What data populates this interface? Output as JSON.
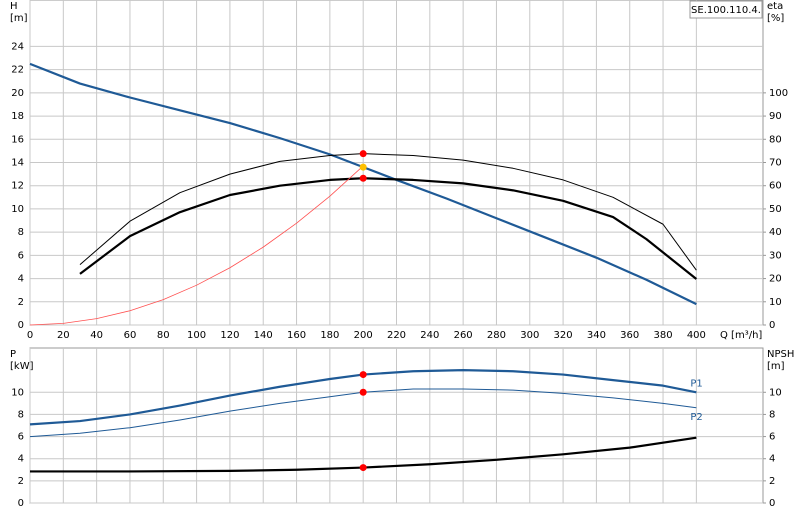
{
  "chart_data": [
    {
      "type": "line",
      "ylabel": [
        "H",
        "[m]"
      ],
      "y2label": [
        "eta",
        "[%]"
      ],
      "xlabel": "Q [m³/h]",
      "annotation": "SE.100.110.4.",
      "xlim": [
        0,
        440
      ],
      "xticks": [
        0,
        20,
        40,
        60,
        80,
        100,
        120,
        140,
        160,
        180,
        200,
        220,
        240,
        260,
        280,
        300,
        320,
        340,
        360,
        380,
        400
      ],
      "ylim": [
        0,
        28
      ],
      "yticks": [
        0,
        2,
        4,
        6,
        8,
        10,
        12,
        14,
        16,
        18,
        20,
        22,
        24
      ],
      "y2lim": [
        0,
        140
      ],
      "y2ticks": [
        0,
        10,
        20,
        30,
        40,
        50,
        60,
        70,
        80,
        90,
        100
      ],
      "grid": true,
      "xticklabels": true,
      "series": [
        {
          "color": "#1f5a96",
          "width": 2.2,
          "x": [
            0,
            30,
            60,
            90,
            120,
            150,
            180,
            200,
            220,
            250,
            280,
            310,
            340,
            370,
            400
          ],
          "values": [
            22.5,
            20.8,
            19.6,
            18.5,
            17.4,
            16.1,
            14.7,
            13.6,
            12.5,
            10.9,
            9.2,
            7.5,
            5.8,
            3.9,
            1.8
          ]
        },
        {
          "color": "#000000",
          "width": 1,
          "axis": "y2",
          "x": [
            30,
            60,
            90,
            120,
            150,
            180,
            200,
            230,
            260,
            290,
            320,
            350,
            380,
            400
          ],
          "values": [
            26,
            44.7,
            57,
            65,
            70.5,
            73,
            73.8,
            73,
            71,
            67.5,
            62.5,
            55,
            43.4,
            23.6
          ]
        },
        {
          "color": "#000000",
          "width": 2.2,
          "axis": "y2",
          "x": [
            30,
            60,
            90,
            120,
            150,
            180,
            200,
            230,
            260,
            290,
            320,
            350,
            370,
            400
          ],
          "values": [
            22,
            38.3,
            48.6,
            56,
            60,
            62.5,
            63.2,
            62.5,
            61,
            58,
            53.5,
            46.5,
            37,
            19.8
          ]
        },
        {
          "color": "#ff5050",
          "width": 0.8,
          "x": [
            0,
            20,
            40,
            60,
            80,
            100,
            120,
            140,
            160,
            180,
            200
          ],
          "values": [
            0,
            0.14,
            0.55,
            1.23,
            2.19,
            3.43,
            4.93,
            6.71,
            8.77,
            11.1,
            13.7
          ]
        },
        {
          "color": "#ff0000",
          "marker": "circle",
          "axis": "y2",
          "x": [
            200
          ],
          "values": [
            73.8
          ]
        },
        {
          "color": "#ff0000",
          "marker": "circle",
          "axis": "y2",
          "x": [
            200
          ],
          "values": [
            63.2
          ]
        },
        {
          "color": "#ffc000",
          "marker": "circle",
          "x": [
            200
          ],
          "values": [
            13.6
          ]
        }
      ]
    },
    {
      "type": "line",
      "ylabel": [
        "P",
        "[kW]"
      ],
      "y2label": [
        "NPSH",
        "[m]"
      ],
      "xlim": [
        0,
        440
      ],
      "xticks": [
        0,
        20,
        40,
        60,
        80,
        100,
        120,
        140,
        160,
        180,
        200,
        220,
        240,
        260,
        280,
        300,
        320,
        340,
        360,
        380,
        400
      ],
      "ylim": [
        0,
        14
      ],
      "yticks": [
        0,
        2,
        4,
        6,
        8,
        10
      ],
      "y2lim": [
        0,
        14
      ],
      "y2ticks": [
        0,
        2,
        4,
        6,
        8,
        10
      ],
      "grid": true,
      "xticklabels": false,
      "series": [
        {
          "name": "P1",
          "color": "#1f5a96",
          "width": 2.2,
          "x": [
            0,
            30,
            60,
            90,
            120,
            150,
            180,
            200,
            230,
            260,
            290,
            320,
            350,
            380,
            400
          ],
          "values": [
            7.1,
            7.4,
            8.0,
            8.8,
            9.7,
            10.5,
            11.2,
            11.6,
            11.9,
            12.0,
            11.9,
            11.6,
            11.1,
            10.6,
            10.0
          ]
        },
        {
          "name": "P2",
          "color": "#1f5a96",
          "width": 1,
          "x": [
            0,
            30,
            60,
            90,
            120,
            150,
            180,
            200,
            230,
            260,
            290,
            320,
            350,
            380,
            400
          ],
          "values": [
            6.0,
            6.3,
            6.8,
            7.5,
            8.3,
            9.0,
            9.6,
            10.0,
            10.3,
            10.3,
            10.2,
            9.9,
            9.5,
            9.0,
            8.6
          ]
        },
        {
          "color": "#000000",
          "width": 2.2,
          "axis": "y2",
          "x": [
            0,
            60,
            120,
            160,
            200,
            240,
            280,
            320,
            360,
            400
          ],
          "values": [
            2.85,
            2.85,
            2.9,
            3.0,
            3.2,
            3.5,
            3.9,
            4.4,
            5.0,
            5.9
          ]
        },
        {
          "color": "#ff0000",
          "marker": "circle",
          "x": [
            200
          ],
          "values": [
            11.6
          ]
        },
        {
          "color": "#ff0000",
          "marker": "circle",
          "x": [
            200
          ],
          "values": [
            10.0
          ]
        },
        {
          "color": "#ff0000",
          "marker": "circle",
          "axis": "y2",
          "x": [
            200
          ],
          "values": [
            3.2
          ]
        }
      ]
    }
  ]
}
